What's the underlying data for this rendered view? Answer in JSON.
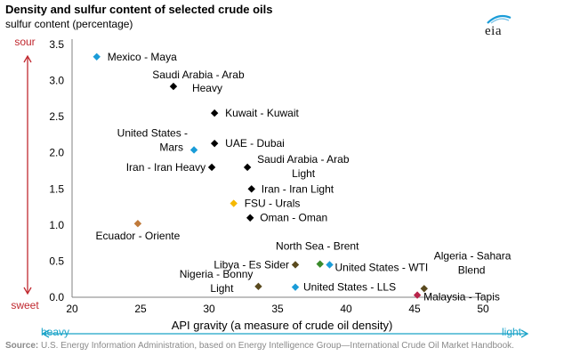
{
  "chart_data": {
    "type": "scatter",
    "title": "Density and sulfur content of selected crude oils",
    "ylabel": "sulfur content (percentage)",
    "xlabel": "API gravity (a measure of crude oil density)",
    "xlim": [
      20,
      50
    ],
    "ylim": [
      0,
      3.5
    ],
    "xticks": [
      20,
      25,
      30,
      35,
      40,
      45,
      50
    ],
    "yticks": [
      0.0,
      0.5,
      1.0,
      1.5,
      2.0,
      2.5,
      3.0,
      3.5
    ],
    "ytick_labels": [
      "0.0",
      "0.5",
      "1.0",
      "1.5",
      "2.0",
      "2.5",
      "3.0",
      "3.5"
    ],
    "y_axis_top_label": "sour",
    "y_axis_bottom_label": "sweet",
    "x_axis_left_label": "heavy",
    "x_axis_right_label": "light",
    "grid": false,
    "points": [
      {
        "label": "Mexico - Maya",
        "x": 21.8,
        "y": 3.33,
        "color": "#1a9cd8"
      },
      {
        "label": "Saudi Arabia - Arab Heavy",
        "x": 27.4,
        "y": 2.92,
        "color": "#000000"
      },
      {
        "label": "Kuwait - Kuwait",
        "x": 30.4,
        "y": 2.55,
        "color": "#000000"
      },
      {
        "label": "UAE - Dubai",
        "x": 30.4,
        "y": 2.13,
        "color": "#000000"
      },
      {
        "label": "United States - Mars",
        "x": 28.9,
        "y": 2.04,
        "color": "#1a9cd8"
      },
      {
        "label": "Iran - Iran Heavy",
        "x": 30.2,
        "y": 1.8,
        "color": "#000000"
      },
      {
        "label": "Saudi Arabia - Arab Light",
        "x": 32.8,
        "y": 1.8,
        "color": "#000000"
      },
      {
        "label": "Iran - Iran Light",
        "x": 33.1,
        "y": 1.5,
        "color": "#000000"
      },
      {
        "label": "FSU - Urals",
        "x": 31.8,
        "y": 1.3,
        "color": "#f5b800"
      },
      {
        "label": "Oman - Oman",
        "x": 33.0,
        "y": 1.1,
        "color": "#000000"
      },
      {
        "label": "Ecuador - Oriente",
        "x": 24.8,
        "y": 1.02,
        "color": "#c07a3a"
      },
      {
        "label": "North Sea - Brent",
        "x": 38.1,
        "y": 0.46,
        "color": "#3a8a2a"
      },
      {
        "label": "Libya - Es Sider",
        "x": 36.3,
        "y": 0.45,
        "color": "#5a4a1e"
      },
      {
        "label": "United States - WTI",
        "x": 38.8,
        "y": 0.45,
        "color": "#1a9cd8"
      },
      {
        "label": "United States - LLS",
        "x": 36.3,
        "y": 0.14,
        "color": "#1a9cd8"
      },
      {
        "label": "Nigeria - Bonny Light",
        "x": 33.6,
        "y": 0.15,
        "color": "#5a4a1e"
      },
      {
        "label": "Algeria - Sahara Blend",
        "x": 45.7,
        "y": 0.12,
        "color": "#5a4a1e"
      },
      {
        "label": "Malaysia - Tapis",
        "x": 45.2,
        "y": 0.03,
        "color": "#b8244a"
      }
    ]
  },
  "source": {
    "label": "Source:",
    "text": " U.S. Energy Information Administration, based on Energy Intelligence Group—International Crude Oil Market Handbook."
  },
  "logo": {
    "text": "eia"
  }
}
